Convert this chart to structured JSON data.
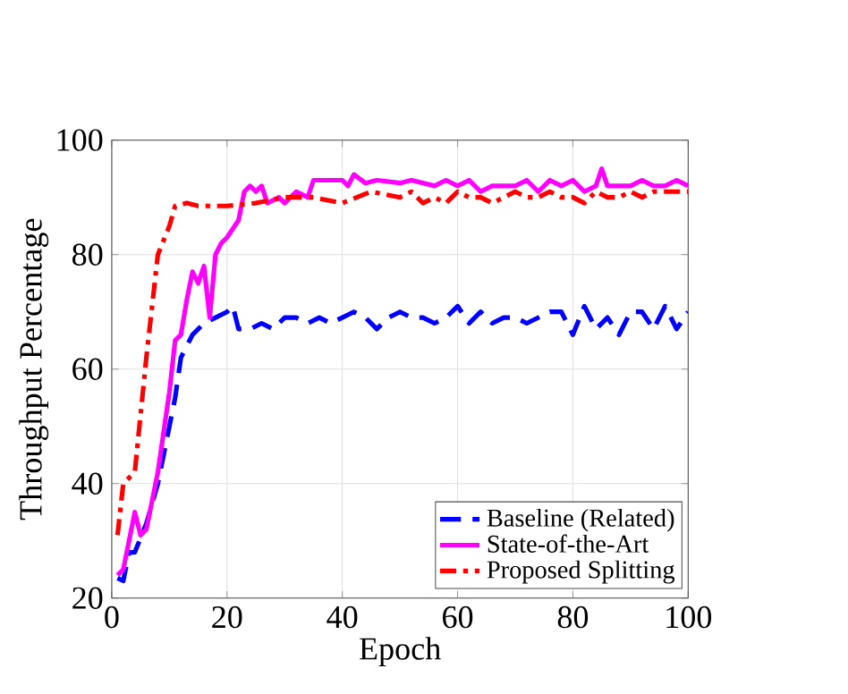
{
  "chart_data": {
    "type": "line",
    "xlabel": "Epoch",
    "ylabel": "Throughput Percentage",
    "xlim": [
      0,
      100
    ],
    "ylim": [
      20,
      100
    ],
    "xticks": [
      0,
      20,
      40,
      60,
      80,
      100
    ],
    "yticks": [
      20,
      40,
      60,
      80,
      100
    ],
    "grid": true,
    "legend": "bottom right",
    "marker": "none",
    "series": [
      {
        "name": "Baseline (Related)",
        "color": "#0000ff",
        "line_style": "dashed",
        "x": [
          1,
          2,
          3,
          4,
          6,
          8,
          10,
          11,
          12,
          14,
          16,
          18,
          20,
          21,
          22,
          24,
          26,
          28,
          30,
          32,
          34,
          36,
          38,
          40,
          42,
          44,
          46,
          48,
          50,
          52,
          54,
          56,
          58,
          60,
          62,
          64,
          66,
          68,
          70,
          72,
          74,
          76,
          78,
          80,
          82,
          84,
          86,
          88,
          90,
          92,
          94,
          96,
          98,
          100
        ],
        "values": [
          23.5,
          23,
          28,
          28,
          33,
          40,
          50,
          55,
          62,
          66,
          68,
          69,
          70,
          71,
          67,
          67,
          68,
          67,
          69,
          69,
          68,
          69,
          68,
          69,
          70,
          69,
          67,
          69,
          70,
          69,
          69,
          68,
          69,
          71,
          68,
          70,
          68,
          69,
          69,
          68,
          69,
          70,
          70,
          66,
          71,
          67,
          69,
          66,
          70,
          70,
          67,
          71,
          67,
          70
        ]
      },
      {
        "name": "State-of-the-Art",
        "color": "#ff00ff",
        "line_style": "solid",
        "x": [
          1,
          2,
          3,
          4,
          5,
          6,
          7,
          8,
          9,
          10,
          11,
          12,
          13,
          14,
          15,
          16,
          17,
          18,
          19,
          20,
          22,
          23,
          24,
          25,
          26,
          27,
          29,
          30,
          32,
          34,
          35,
          37,
          40,
          41,
          42,
          44,
          46,
          50,
          52,
          56,
          58,
          60,
          62,
          64,
          66,
          68,
          70,
          72,
          74,
          76,
          78,
          80,
          82,
          84,
          85,
          86,
          88,
          90,
          92,
          94,
          96,
          98,
          100
        ],
        "values": [
          24,
          25,
          30,
          35,
          31,
          32,
          37,
          42,
          49,
          56,
          65,
          66,
          72,
          77,
          75,
          78,
          69,
          80,
          82,
          83,
          86,
          91,
          92,
          91,
          92,
          89,
          90,
          89,
          91,
          90,
          93,
          93,
          93,
          92,
          94,
          92.5,
          93,
          92.5,
          93,
          92,
          93,
          92,
          93,
          91,
          92,
          92,
          92,
          93,
          91,
          93,
          92,
          93,
          91,
          92,
          95,
          92,
          92,
          92,
          93,
          92,
          92,
          93,
          92
        ]
      },
      {
        "name": "Proposed Splitting",
        "color": "#ff0000",
        "line_style": "dashdot",
        "x": [
          1,
          2,
          3,
          4,
          6,
          8,
          10,
          11,
          13,
          15,
          20,
          25,
          30,
          35,
          40,
          45,
          50,
          52,
          54,
          56,
          58,
          60,
          62,
          64,
          66,
          68,
          70,
          72,
          74,
          76,
          78,
          80,
          82,
          84,
          86,
          88,
          90,
          92,
          94,
          96,
          98,
          100
        ],
        "values": [
          31,
          40,
          41,
          42,
          62,
          80,
          85,
          88.5,
          89,
          88.5,
          88.5,
          89,
          90,
          90,
          89,
          91,
          90,
          91,
          89,
          90,
          89,
          91,
          90,
          90,
          89,
          90,
          91,
          90,
          90,
          91,
          90,
          90,
          89,
          91,
          90,
          90,
          91,
          90,
          91,
          91,
          91,
          91
        ]
      }
    ]
  }
}
